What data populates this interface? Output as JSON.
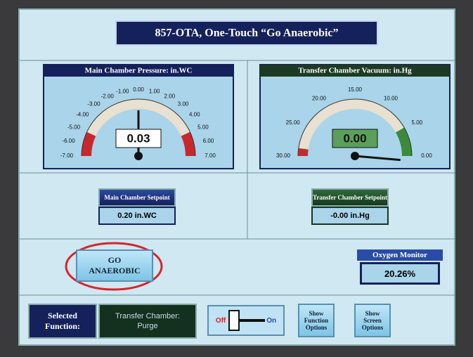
{
  "title": "857-OTA, One-Touch “Go Anaerobic”",
  "gauges": [
    {
      "header": "Main Chamber Pressure:  in.WC",
      "labels": [
        "-7.00",
        "-6.00",
        "-5.00",
        "-4.00",
        "-3.00",
        "-2.00",
        "-1.00",
        "0.00",
        "1.00",
        "2.00",
        "3.00",
        "4.00",
        "5.00",
        "6.00",
        "7.00"
      ],
      "reading": "0.03"
    },
    {
      "header": "Transfer Chamber Vacuum: in.Hg",
      "labels": [
        "30.00",
        "25.00",
        "20.00",
        "15.00",
        "10.00",
        "5.00",
        "0.00"
      ],
      "reading": "0.00"
    }
  ],
  "setpoints": [
    {
      "label": "Main Chamber Setpoint",
      "value": "0.20 in.WC"
    },
    {
      "label": "Transfer Chamber Setpoint",
      "value": "-0.00 in.Hg"
    }
  ],
  "go_button": "GO ANAEROBIC",
  "oxygen_monitor": {
    "label": "Oxygen Monitor",
    "value": "20.26%"
  },
  "selected_function": {
    "label": "Selected Function:",
    "value": "Transfer Chamber: Purge"
  },
  "switch": {
    "off": "Off",
    "on": "On"
  },
  "buttons": [
    "Show Function Options",
    "Show Screen Options"
  ]
}
